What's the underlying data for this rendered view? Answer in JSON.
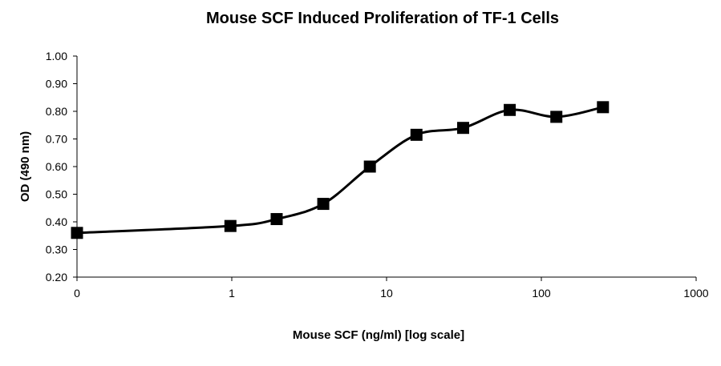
{
  "chart_data": {
    "type": "line",
    "title": "Mouse SCF Induced Proliferation of TF-1 Cells",
    "xlabel": "Mouse SCF (ng/ml) [log scale]",
    "ylabel": "OD (490 nm)",
    "x_scale": "log",
    "xlim": [
      0.1,
      1000
    ],
    "ylim": [
      0.2,
      1.0
    ],
    "x_ticks": [
      {
        "value": 0.1,
        "label": "0"
      },
      {
        "value": 1,
        "label": "1"
      },
      {
        "value": 10,
        "label": "10"
      },
      {
        "value": 100,
        "label": "100"
      },
      {
        "value": 1000,
        "label": "1000"
      }
    ],
    "y_ticks": [
      {
        "value": 0.2,
        "label": "0.20"
      },
      {
        "value": 0.3,
        "label": "0.30"
      },
      {
        "value": 0.4,
        "label": "0.40"
      },
      {
        "value": 0.5,
        "label": "0.50"
      },
      {
        "value": 0.6,
        "label": "0.60"
      },
      {
        "value": 0.7,
        "label": "0.70"
      },
      {
        "value": 0.8,
        "label": "0.80"
      },
      {
        "value": 0.9,
        "label": "0.90"
      },
      {
        "value": 1.0,
        "label": "1.00"
      }
    ],
    "grid": false,
    "legend": "none",
    "series": [
      {
        "marker": "square",
        "color": "#000000",
        "points": [
          {
            "x": 0.1,
            "y": 0.36
          },
          {
            "x": 0.98,
            "y": 0.385
          },
          {
            "x": 1.95,
            "y": 0.41
          },
          {
            "x": 3.9,
            "y": 0.465
          },
          {
            "x": 7.8,
            "y": 0.6
          },
          {
            "x": 15.6,
            "y": 0.715
          },
          {
            "x": 31.25,
            "y": 0.74
          },
          {
            "x": 62.5,
            "y": 0.805
          },
          {
            "x": 125,
            "y": 0.78
          },
          {
            "x": 250,
            "y": 0.815
          }
        ]
      }
    ]
  }
}
